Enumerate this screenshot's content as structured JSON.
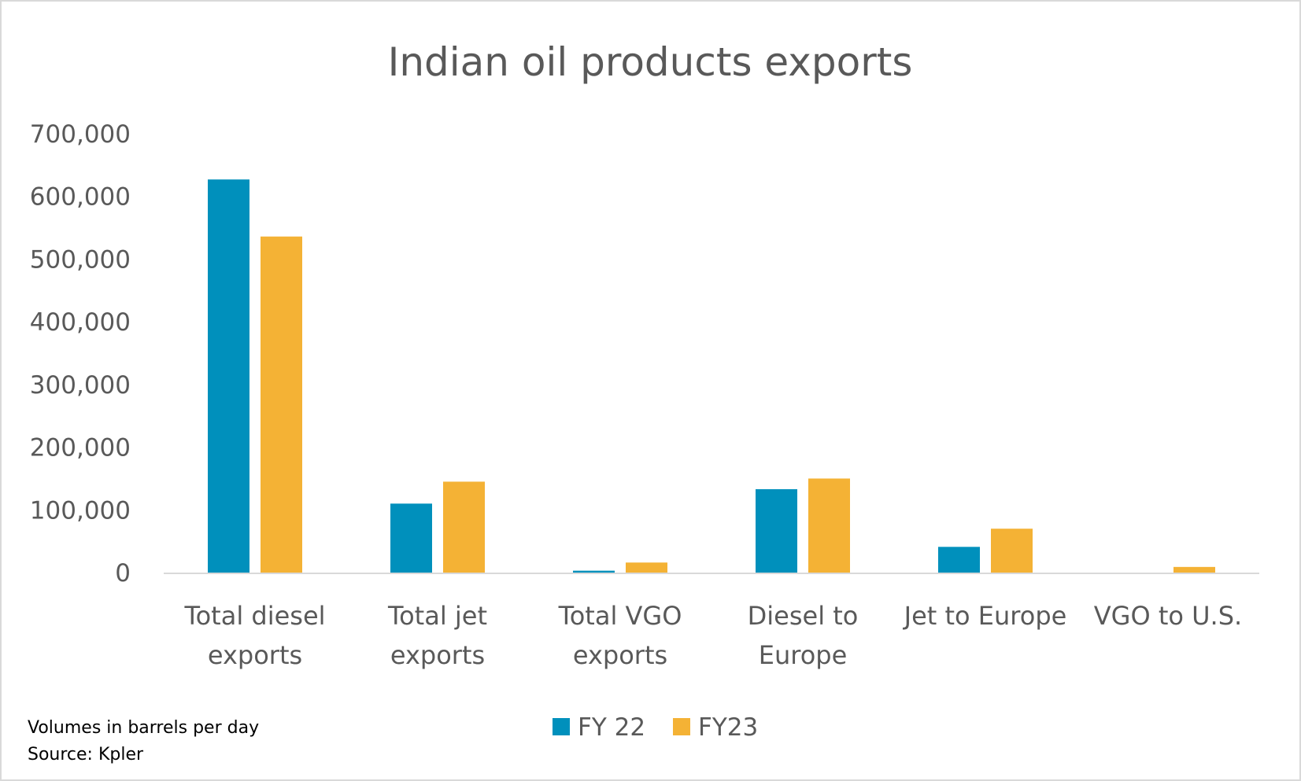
{
  "chart_data": {
    "type": "bar",
    "title": "Indian oil products exports",
    "categories": [
      [
        "Total diesel",
        "exports"
      ],
      [
        "Total jet",
        "exports"
      ],
      [
        "Total VGO",
        "exports"
      ],
      [
        "Diesel to",
        "Europe"
      ],
      [
        "Jet to Europe"
      ],
      [
        "VGO to U.S."
      ]
    ],
    "series": [
      {
        "name": "FY 22",
        "color": "#0090BC",
        "values": [
          627000,
          110000,
          3000,
          133000,
          41000,
          0
        ]
      },
      {
        "name": "FY23",
        "color": "#F4B235",
        "values": [
          536000,
          145000,
          16000,
          150000,
          70000,
          9000
        ]
      }
    ],
    "ylim": [
      0,
      700000
    ],
    "yticks": [
      0,
      100000,
      200000,
      300000,
      400000,
      500000,
      600000,
      700000
    ],
    "ytick_labels": [
      "0",
      "100,000",
      "200,000",
      "300,000",
      "400,000",
      "500,000",
      "600,000",
      "700,000"
    ],
    "grid": false,
    "legend": "bottom",
    "notes": [
      "Volumes in barrels per day",
      "Source: Kpler"
    ]
  }
}
